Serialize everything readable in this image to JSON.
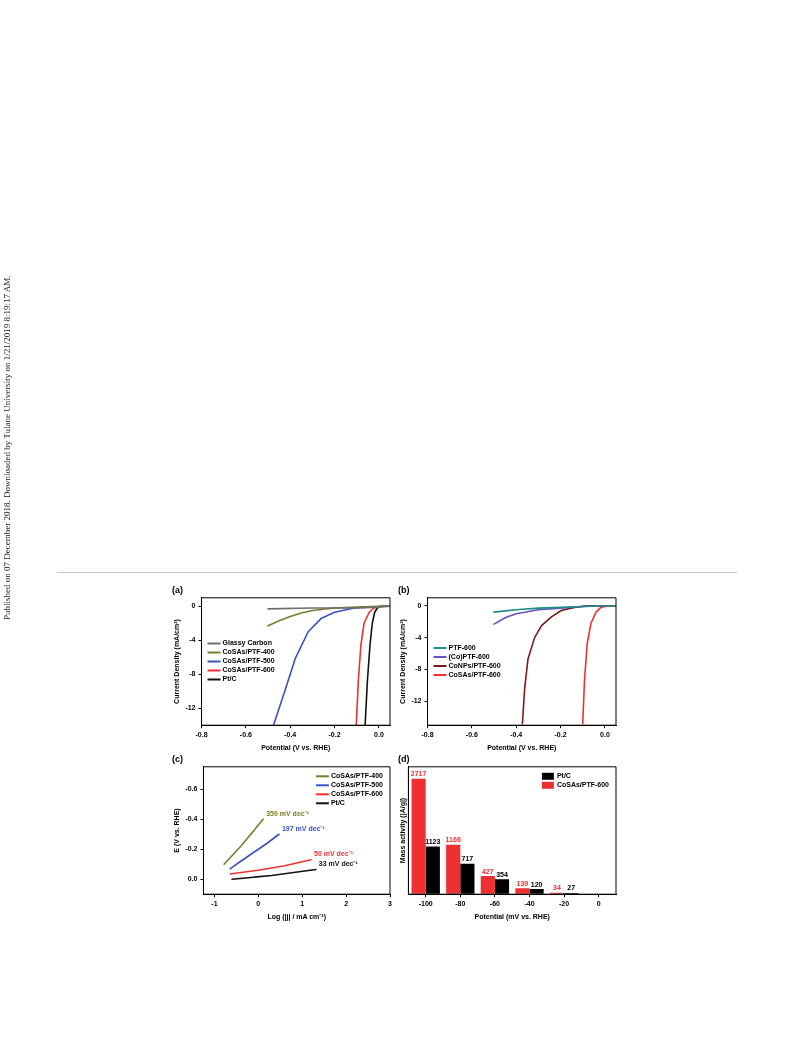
{
  "chart_data": [
    {
      "type": "line",
      "title": "(a)",
      "xlabel": "Potential (V vs. RHE)",
      "ylabel": "Current Density (mA/cm²)",
      "xlim": [
        -0.8,
        0.05
      ],
      "ylim": [
        -14,
        1
      ],
      "xticks": [
        {
          "value": -0.8,
          "label": "-0.8"
        },
        {
          "value": -0.6,
          "label": "-0.6"
        },
        {
          "value": -0.4,
          "label": "-0.4"
        },
        {
          "value": -0.2,
          "label": "-0.2"
        },
        {
          "value": 0,
          "label": "0.0"
        }
      ],
      "yticks": [
        0,
        -4,
        -8,
        -12
      ],
      "grid": false,
      "legend": "left",
      "marker": "none",
      "line_style": "solid",
      "annotations": [
        "Published on 07 December 2018. Downloaded by Tulane University on 1/21/2019 8:19:17 AM."
      ],
      "series": [
        {
          "name": "Glassy Carbon",
          "color": "#6e6e6e",
          "x": [
            -0.5,
            -0.3,
            -0.1,
            0,
            0.05
          ],
          "values": [
            -0.3,
            -0.2,
            -0.2,
            -0.1,
            0
          ]
        },
        {
          "name": "CoSAs/PTF-400",
          "color": "#7b7b2c",
          "x": [
            -0.5,
            -0.45,
            -0.4,
            -0.35,
            -0.3,
            -0.2,
            -0.1,
            0,
            0.05
          ],
          "values": [
            -2.3,
            -1.7,
            -1.2,
            -0.8,
            -0.5,
            -0.2,
            -0.1,
            0,
            0
          ]
        },
        {
          "name": "CoSAs/PTF-500",
          "color": "#3a52c0",
          "x": [
            -0.474,
            -0.422,
            -0.378,
            -0.319,
            -0.259,
            -0.2,
            -0.11,
            -0.05
          ],
          "values": [
            -13.9,
            -9.8,
            -6.2,
            -3,
            -1.4,
            -0.7,
            -0.2,
            -0.1
          ]
        },
        {
          "name": "CoSAs/PTF-600",
          "color": "#ee3030",
          "x": [
            -0.102,
            -0.093,
            -0.081,
            -0.067,
            -0.044,
            -0.022,
            0.007,
            0.05
          ],
          "values": [
            -13.9,
            -8.8,
            -4.5,
            -2,
            -0.7,
            -0.2,
            0,
            0
          ]
        },
        {
          "name": "Pt/C",
          "color": "#111111",
          "x": [
            -0.062,
            -0.052,
            -0.04,
            -0.03,
            -0.019,
            -0.007,
            0.007,
            0.05
          ],
          "values": [
            -13.9,
            -8.8,
            -4.5,
            -2,
            -0.7,
            -0.2,
            0,
            0
          ]
        }
      ]
    },
    {
      "type": "line",
      "title": "(b)",
      "xlabel": "Potential (V vs. RHE)",
      "ylabel": "Current Density (mA/cm²)",
      "xlim": [
        -0.8,
        0.05
      ],
      "ylim": [
        -15,
        1
      ],
      "xticks": [
        {
          "value": -0.8,
          "label": "-0.8"
        },
        {
          "value": -0.6,
          "label": "-0.6"
        },
        {
          "value": -0.4,
          "label": "-0.4"
        },
        {
          "value": -0.2,
          "label": "-0.2"
        },
        {
          "value": 0,
          "label": "0.0"
        }
      ],
      "yticks": [
        0,
        -4,
        -8,
        -12
      ],
      "grid": false,
      "legend": "left",
      "marker": "none",
      "line_style": "solid",
      "series": [
        {
          "name": "PTF-600",
          "color": "#1f8c86",
          "x": [
            -0.5,
            -0.4,
            -0.3,
            -0.2,
            -0.1,
            0,
            0.05
          ],
          "values": [
            -0.8,
            -0.5,
            -0.3,
            -0.2,
            -0.1,
            0,
            0
          ]
        },
        {
          "name": "(Co)PTF-600",
          "color": "#6a50c0",
          "x": [
            -0.5,
            -0.45,
            -0.4,
            -0.3,
            -0.2,
            -0.1,
            0,
            0.05
          ],
          "values": [
            -2.3,
            -1.5,
            -1,
            -0.5,
            -0.3,
            -0.1,
            0,
            0
          ]
        },
        {
          "name": "CoNPs/PTF-600",
          "color": "#7a1a1a",
          "x": [
            -0.372,
            -0.362,
            -0.347,
            -0.317,
            -0.286,
            -0.241,
            -0.197,
            -0.137,
            -0.077,
            0.05
          ],
          "values": [
            -14.8,
            -10.4,
            -6.7,
            -4,
            -2.5,
            -1.4,
            -0.6,
            -0.2,
            0,
            0
          ]
        },
        {
          "name": "CoSAs/PTF-600",
          "color": "#ee3030",
          "x": [
            -0.1,
            -0.092,
            -0.08,
            -0.063,
            -0.04,
            -0.018,
            0.012,
            0.05
          ],
          "values": [
            -14.8,
            -9.3,
            -4.8,
            -2.2,
            -0.8,
            -0.2,
            0,
            0
          ]
        }
      ]
    },
    {
      "type": "line",
      "title": "(c)",
      "xlabel": "Log (|j| / mA cm⁻²)",
      "ylabel": "E (V vs. RHE)",
      "xlim": [
        -1.25,
        3
      ],
      "ylim": [
        0.1,
        -0.75
      ],
      "xticks": [
        -1,
        0,
        1,
        2,
        3
      ],
      "yticks": [
        {
          "value": -0.6,
          "label": "-0.6"
        },
        {
          "value": -0.4,
          "label": "-0.4"
        },
        {
          "value": -0.2,
          "label": "-0.2"
        },
        {
          "value": 0,
          "label": "0.0"
        }
      ],
      "grid": false,
      "legend": "top right",
      "marker": "none",
      "line_style": "solid",
      "annotations": [
        "350 mV dec⁻¹",
        "197 mV dec⁻¹",
        "50 mV dec⁻¹",
        "33 mV dec⁻¹"
      ],
      "series": [
        {
          "name": "CoSAs/PTF-400",
          "color": "#7b7b2c",
          "x": [
            -0.78,
            -0.4,
            0.11
          ],
          "values": [
            -0.1,
            -0.22,
            -0.4
          ]
        },
        {
          "name": "CoSAs/PTF-500",
          "color": "#3a52c0",
          "x": [
            -0.64,
            -0.3,
            0,
            0.2,
            0.47
          ],
          "values": [
            -0.07,
            -0.14,
            -0.2,
            -0.24,
            -0.3
          ]
        },
        {
          "name": "CoSAs/PTF-600",
          "color": "#ee3030",
          "x": [
            -0.64,
            0,
            0.6,
            1.2
          ],
          "values": [
            -0.035,
            -0.06,
            -0.09,
            -0.13
          ]
        },
        {
          "name": "Pt/C",
          "color": "#111111",
          "x": [
            -0.6,
            0.3,
            1.31
          ],
          "values": [
            0,
            -0.025,
            -0.065
          ]
        }
      ]
    },
    {
      "type": "bar",
      "title": "(d)",
      "xlabel": "Potential (mV vs. RHE)",
      "ylabel": "Mass activity (|A/g|)",
      "categories": [
        "-100",
        "-80",
        "-60",
        "-40",
        "-20",
        "0"
      ],
      "tick_labels": "x",
      "grid": false,
      "legend": "top right",
      "data_labels": true,
      "series": [
        {
          "name": "CoSAs/PTF-600",
          "color": "#ee3030",
          "values": [
            2717,
            1166,
            427,
            139,
            34,
            null
          ]
        },
        {
          "name": "Pt/C",
          "color": "#000000",
          "values": [
            1123,
            717,
            354,
            120,
            27,
            null
          ]
        }
      ]
    }
  ]
}
